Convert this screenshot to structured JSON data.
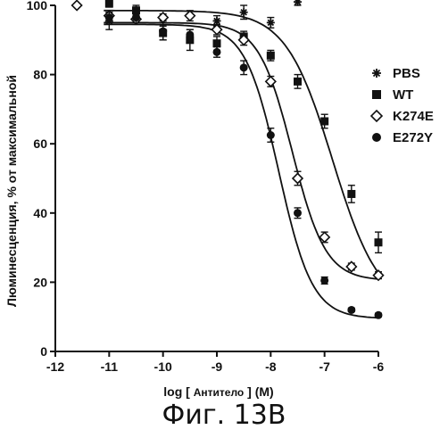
{
  "figure_caption": "Фиг. 13В",
  "chart_data": {
    "type": "scatter",
    "title": "",
    "xlabel": {
      "prefix": "log [ ",
      "unit_word": "Антитело",
      "suffix": " ] (M)"
    },
    "ylabel": "Люминесценция, % от максимальной",
    "xlim": [
      -12,
      -6
    ],
    "ylim": [
      0,
      100
    ],
    "xticks": [
      -12,
      -11,
      -10,
      -9,
      -8,
      -7,
      -6
    ],
    "yticks": [
      0,
      20,
      40,
      60,
      80,
      100
    ],
    "grid": false,
    "legend_position": "right",
    "series": [
      {
        "name": "PBS",
        "marker": "asterisk",
        "points": [
          {
            "x": -11.0,
            "y": 95.5,
            "err": 2.5
          },
          {
            "x": -10.5,
            "y": 98.0,
            "err": 1.5
          },
          {
            "x": -9.0,
            "y": 95.5,
            "err": 1.5
          },
          {
            "x": -8.5,
            "y": 98.0,
            "err": 2.0
          },
          {
            "x": -8.0,
            "y": 95.0,
            "err": 1.5
          },
          {
            "x": -7.5,
            "y": 101.0,
            "err": 1.0
          }
        ]
      },
      {
        "name": "WT",
        "marker": "square",
        "points": [
          {
            "x": -11.0,
            "y": 100.5,
            "err": 1.0
          },
          {
            "x": -10.5,
            "y": 98.5,
            "err": 1.5
          },
          {
            "x": -10.0,
            "y": 92.0,
            "err": 2.0
          },
          {
            "x": -9.5,
            "y": 90.0,
            "err": 3.0
          },
          {
            "x": -9.0,
            "y": 89.0,
            "err": 2.0
          },
          {
            "x": -8.5,
            "y": 91.0,
            "err": 1.5
          },
          {
            "x": -8.0,
            "y": 85.5,
            "err": 1.5
          },
          {
            "x": -7.5,
            "y": 78.0,
            "err": 2.0
          },
          {
            "x": -7.0,
            "y": 66.5,
            "err": 2.0
          },
          {
            "x": -6.5,
            "y": 45.5,
            "err": 2.5
          },
          {
            "x": -6.0,
            "y": 31.5,
            "err": 3.0
          }
        ],
        "fit": {
          "top": 98.5,
          "bottom": 12,
          "logEC50": -6.85,
          "hill": 1.0
        }
      },
      {
        "name": "K274E",
        "marker": "diamond",
        "points": [
          {
            "x": -11.6,
            "y": 100.0,
            "err": 0
          },
          {
            "x": -11.0,
            "y": 97.0,
            "err": 1.5
          },
          {
            "x": -10.5,
            "y": 96.0,
            "err": 1.5
          },
          {
            "x": -10.0,
            "y": 96.5,
            "err": 1.0
          },
          {
            "x": -9.5,
            "y": 97.0,
            "err": 1.5
          },
          {
            "x": -9.0,
            "y": 93.0,
            "err": 1.5
          },
          {
            "x": -8.5,
            "y": 90.0,
            "err": 1.5
          },
          {
            "x": -8.0,
            "y": 78.0,
            "err": 1.5
          },
          {
            "x": -7.5,
            "y": 50.0,
            "err": 2.0
          },
          {
            "x": -7.0,
            "y": 33.0,
            "err": 1.5
          },
          {
            "x": -6.5,
            "y": 24.5,
            "err": 1.0
          },
          {
            "x": -6.0,
            "y": 22.0,
            "err": 1.0
          }
        ],
        "fit": {
          "top": 95.0,
          "bottom": 20.5,
          "logEC50": -7.6,
          "hill": 1.4
        }
      },
      {
        "name": "E272Y",
        "marker": "circle",
        "points": [
          {
            "x": -11.0,
            "y": 96.5,
            "err": 1.5
          },
          {
            "x": -10.5,
            "y": 96.5,
            "err": 2.0
          },
          {
            "x": -10.0,
            "y": 92.5,
            "err": 2.5
          },
          {
            "x": -9.5,
            "y": 91.5,
            "err": 1.5
          },
          {
            "x": -9.0,
            "y": 86.5,
            "err": 1.5
          },
          {
            "x": -8.5,
            "y": 82.0,
            "err": 2.0
          },
          {
            "x": -8.0,
            "y": 62.5,
            "err": 2.0
          },
          {
            "x": -7.5,
            "y": 40.0,
            "err": 1.5
          },
          {
            "x": -7.0,
            "y": 20.5,
            "err": 1.0
          },
          {
            "x": -6.5,
            "y": 12.0,
            "err": 0.5
          },
          {
            "x": -6.0,
            "y": 10.5,
            "err": 0.5
          }
        ],
        "fit": {
          "top": 94.5,
          "bottom": 9.5,
          "logEC50": -7.85,
          "hill": 1.4
        }
      }
    ]
  }
}
